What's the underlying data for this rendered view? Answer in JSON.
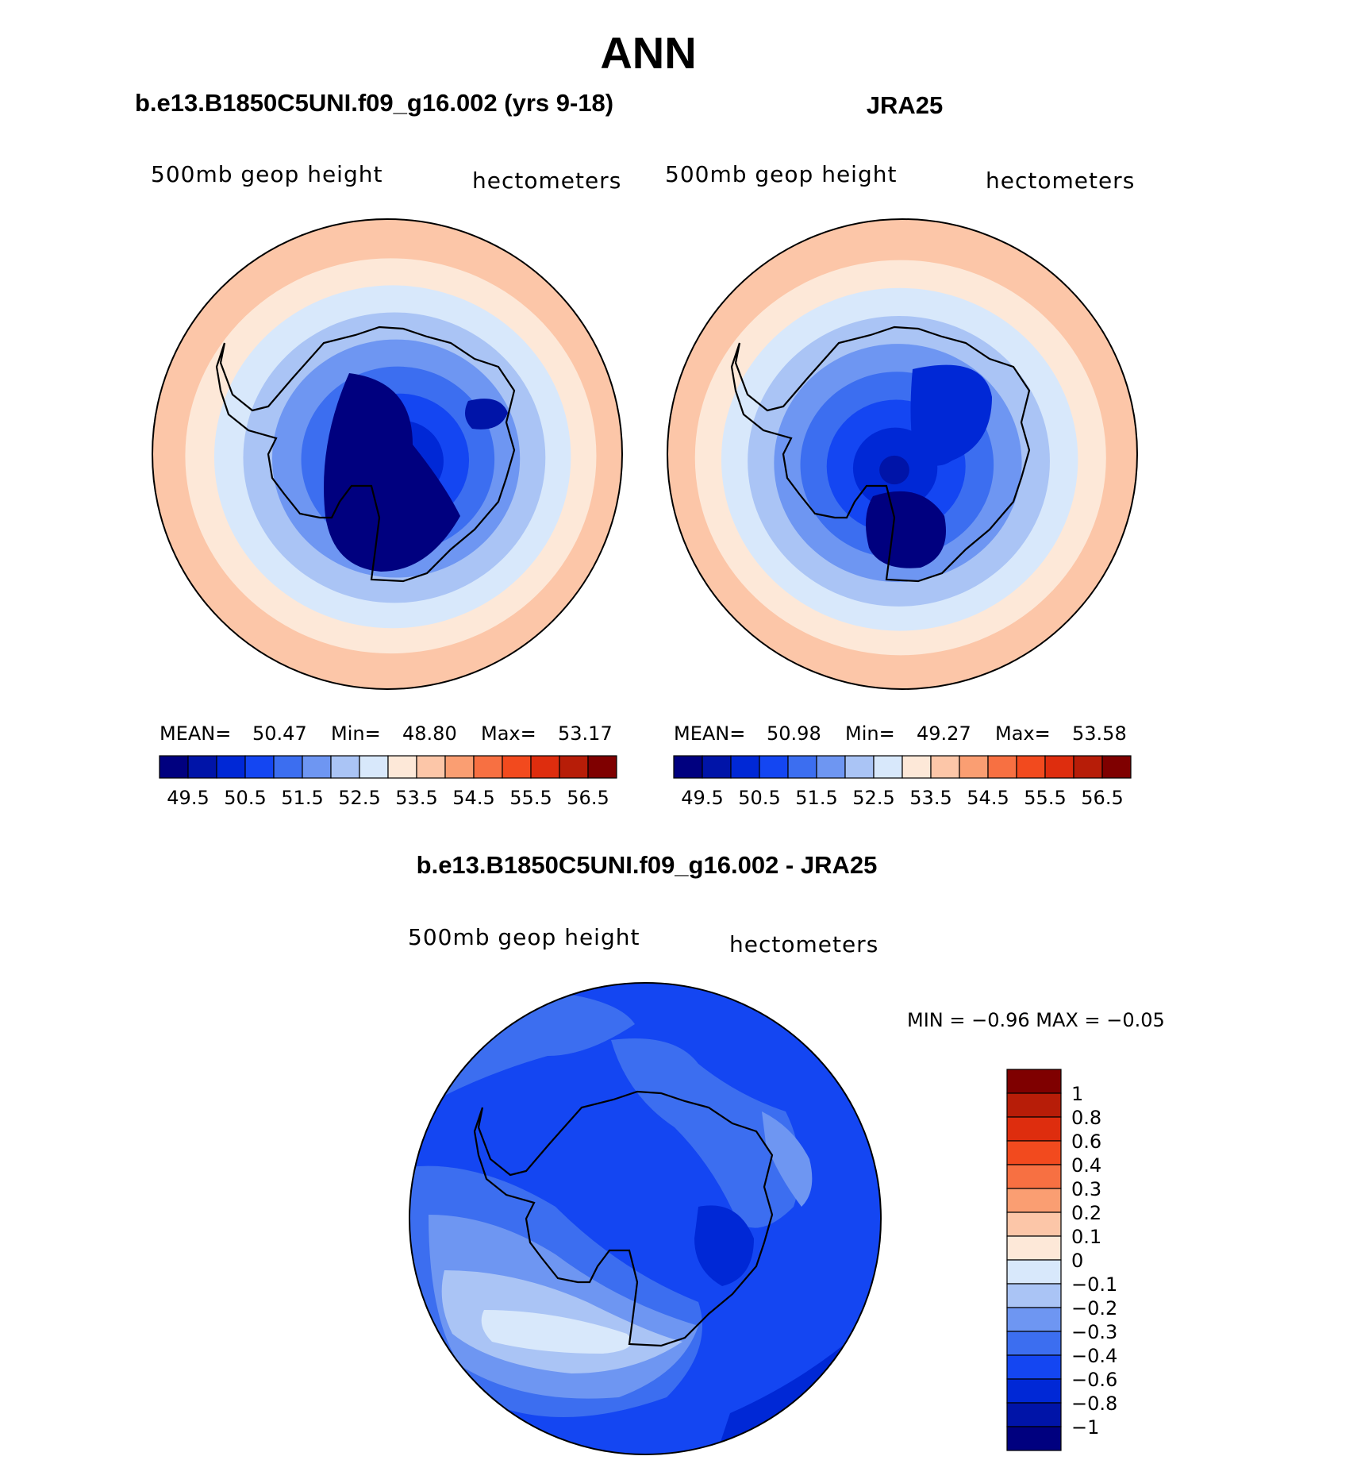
{
  "chart_data": {
    "type": "filled-contour-map",
    "figure_title": "ANN",
    "panels": [
      {
        "id": "model",
        "title": "b.e13.B1850C5UNI.f09_g16.002 (yrs 9-18)",
        "left_label": "500mb geop height",
        "right_label": "hectometers",
        "stats": {
          "mean_label": "MEAN=",
          "mean": "50.47",
          "min_label": "Min=",
          "min": "48.80",
          "max_label": "Max=",
          "max": "53.17"
        },
        "contour_fills_center_to_edge": [
          49.5,
          50.0,
          50.5,
          51.0,
          51.5,
          52.0,
          52.5,
          53.0,
          53.5
        ]
      },
      {
        "id": "obs",
        "title": "JRA25",
        "left_label": "500mb geop height",
        "right_label": "hectometers",
        "stats": {
          "mean_label": "MEAN=",
          "mean": "50.98",
          "min_label": "Min=",
          "min": "49.27",
          "max_label": "Max=",
          "max": "53.58"
        },
        "contour_fills_center_to_edge": [
          49.5,
          50.0,
          50.5,
          51.0,
          51.5,
          52.0,
          52.5,
          53.0,
          53.5
        ]
      },
      {
        "id": "diff",
        "title": "b.e13.B1850C5UNI.f09_g16.002 - JRA25",
        "left_label": "500mb geop height",
        "right_label": "hectometers",
        "stats_text": "MIN =   −0.96 MAX =   −0.05",
        "value_range": [
          -0.96,
          -0.05
        ]
      }
    ],
    "colorbar_top": {
      "orientation": "horizontal",
      "colors": [
        "#00007f",
        "#0014a8",
        "#0028d6",
        "#1446f2",
        "#3c6ef0",
        "#6e96f2",
        "#aac4f5",
        "#d8e8fb",
        "#fde8d8",
        "#fcc6a8",
        "#fa9e72",
        "#f77042",
        "#f24a1e",
        "#de2d0e",
        "#b71d08",
        "#7f0000"
      ],
      "tick_labels": [
        "49.5",
        "50.5",
        "51.5",
        "52.5",
        "53.5",
        "54.5",
        "55.5",
        "56.5"
      ]
    },
    "colorbar_diff": {
      "orientation": "vertical",
      "colors_top_to_bottom": [
        "#7f0000",
        "#b71d08",
        "#de2d0e",
        "#f24a1e",
        "#f77042",
        "#fa9e72",
        "#fcc6a8",
        "#fde8d8",
        "#d8e8fb",
        "#aac4f5",
        "#6e96f2",
        "#3c6ef0",
        "#1446f2",
        "#0028d6",
        "#0014a8",
        "#00007f"
      ],
      "tick_labels_top_to_bottom": [
        "1",
        "0.8",
        "0.6",
        "0.4",
        "0.3",
        "0.2",
        "0.1",
        "0",
        "−0.1",
        "−0.2",
        "−0.3",
        "−0.4",
        "−0.6",
        "−0.8",
        "−1"
      ]
    }
  }
}
